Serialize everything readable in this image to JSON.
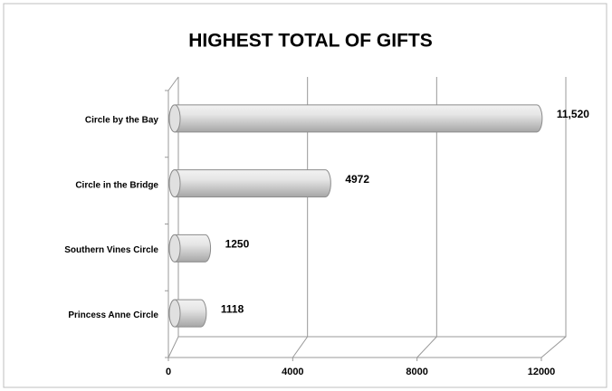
{
  "chart_data": {
    "type": "bar",
    "orientation": "horizontal",
    "title": "HIGHEST TOTAL OF GIFTS",
    "categories": [
      "Circle by the Bay",
      "Circle in the Bridge",
      "Southern Vines Circle",
      "Princess Anne Circle"
    ],
    "values": [
      11520,
      4972,
      1250,
      1118
    ],
    "value_labels": [
      "11,520",
      "4972",
      "1250",
      "1118"
    ],
    "color": "#d9d9d9",
    "xlim": [
      0,
      12000
    ],
    "xticks": [
      0,
      4000,
      8000,
      12000
    ],
    "grid": true
  }
}
